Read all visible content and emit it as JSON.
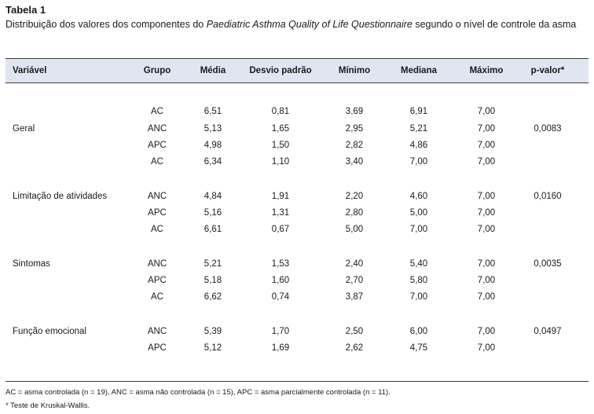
{
  "table": {
    "title": "Tabela 1",
    "caption_part1": "Distribuição dos valores dos componentes do ",
    "caption_italic": "Paediatric Asthma Quality of Life Questionnaire",
    "caption_part2": " segundo o nível de controle da asma",
    "headers": {
      "variavel": "Variável",
      "grupo": "Grupo",
      "media": "Média",
      "desvio": "Desvio padrão",
      "minimo": "Mínimo",
      "mediana": "Mediana",
      "maximo": "Máximo",
      "pvalor": "p-valor*"
    },
    "variables": [
      {
        "label": "Geral",
        "pvalue": "0,0083"
      },
      {
        "label": "Limitação de atividades",
        "pvalue": "0,0160"
      },
      {
        "label": "Sintomas",
        "pvalue": "0,0035"
      },
      {
        "label": "Função emocional",
        "pvalue": "0,0497"
      }
    ],
    "rows": [
      {
        "grupo": "AC",
        "media": "6,51",
        "desvio": "0,81",
        "minimo": "3,69",
        "mediana": "6,91",
        "maximo": "7,00"
      },
      {
        "grupo": "ANC",
        "media": "5,13",
        "desvio": "1,65",
        "minimo": "2,95",
        "mediana": "5,21",
        "maximo": "7,00"
      },
      {
        "grupo": "APC",
        "media": "4,98",
        "desvio": "1,50",
        "minimo": "2,82",
        "mediana": "4,86",
        "maximo": "7,00"
      },
      {
        "grupo": "AC",
        "media": "6,34",
        "desvio": "1,10",
        "minimo": "3,40",
        "mediana": "7,00",
        "maximo": "7,00"
      },
      {
        "grupo": "ANC",
        "media": "4,84",
        "desvio": "1,91",
        "minimo": "2,20",
        "mediana": "4,60",
        "maximo": "7,00"
      },
      {
        "grupo": "APC",
        "media": "5,16",
        "desvio": "1,31",
        "minimo": "2,80",
        "mediana": "5,00",
        "maximo": "7,00"
      },
      {
        "grupo": "AC",
        "media": "6,61",
        "desvio": "0,67",
        "minimo": "5,00",
        "mediana": "7,00",
        "maximo": "7,00"
      },
      {
        "grupo": "ANC",
        "media": "5,21",
        "desvio": "1,53",
        "minimo": "2,40",
        "mediana": "5,40",
        "maximo": "7,00"
      },
      {
        "grupo": "APC",
        "media": "5,18",
        "desvio": "1,60",
        "minimo": "2,70",
        "mediana": "5,80",
        "maximo": "7,00"
      },
      {
        "grupo": "AC",
        "media": "6,62",
        "desvio": "0,74",
        "minimo": "3,87",
        "mediana": "7,00",
        "maximo": "7,00"
      },
      {
        "grupo": "ANC",
        "media": "5,39",
        "desvio": "1,70",
        "minimo": "2,50",
        "mediana": "6,00",
        "maximo": "7,00"
      },
      {
        "grupo": "APC",
        "media": "5,12",
        "desvio": "1,69",
        "minimo": "2,62",
        "mediana": "4,75",
        "maximo": "7,00"
      }
    ],
    "footnotes": [
      "AC = asma controlada (n = 19), ANC = asma não controlada (n = 15), APC = asma parcialmente controlada (n = 11).",
      "* Teste de Kruskal-Wallis."
    ],
    "header_bg": "#dfe6ef"
  }
}
